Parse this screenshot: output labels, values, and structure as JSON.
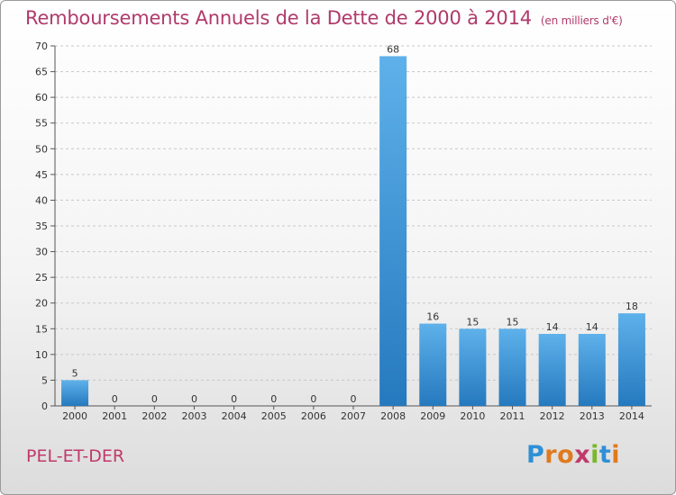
{
  "chart_data": {
    "type": "bar",
    "title": "Remboursements Annuels de la Dette de 2000 à 2014",
    "unit": "(en milliers d'€)",
    "categories": [
      "2000",
      "2001",
      "2002",
      "2003",
      "2004",
      "2005",
      "2006",
      "2007",
      "2008",
      "2009",
      "2010",
      "2011",
      "2012",
      "2013",
      "2014"
    ],
    "values": [
      5,
      0,
      0,
      0,
      0,
      0,
      0,
      0,
      68,
      16,
      15,
      15,
      14,
      14,
      18
    ],
    "ylim": [
      0,
      70
    ],
    "yticks": [
      0,
      5,
      10,
      15,
      20,
      25,
      30,
      35,
      40,
      45,
      50,
      55,
      60,
      65,
      70
    ],
    "grid": true,
    "bar_color": "#3a96dc"
  },
  "commune": "PEL-ET-DER",
  "logo": {
    "text": "Proxiti"
  }
}
